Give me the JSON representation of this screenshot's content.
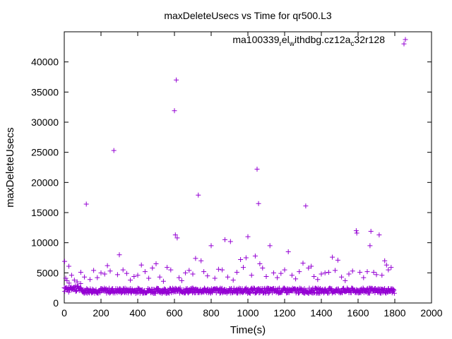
{
  "chart_data": {
    "type": "scatter",
    "title": "maxDeleteUsecs vs Time for qr500.L3",
    "xlabel": "Time(s)",
    "ylabel": "maxDeleteUsecs",
    "xlim": [
      0,
      2000
    ],
    "ylim": [
      0,
      45000
    ],
    "x_ticks": [
      0,
      200,
      400,
      600,
      800,
      1000,
      1200,
      1400,
      1600,
      1800,
      2000
    ],
    "y_ticks": [
      0,
      5000,
      10000,
      15000,
      20000,
      25000,
      30000,
      35000,
      40000
    ],
    "x_tick_labels": [
      "0",
      "200",
      "400",
      "600",
      "800",
      "1000",
      "1200",
      "1400",
      "1600",
      "1800",
      "2000"
    ],
    "y_tick_labels": [
      "0",
      "5000",
      "10000",
      "15000",
      "20000",
      "25000",
      "30000",
      "35000",
      "40000"
    ],
    "grid": false,
    "legend_position": "top-right",
    "marker": "+",
    "color": "#9400d3",
    "series": [
      {
        "legend_parts": [
          "ma100339",
          "r",
          "el",
          "w",
          "ithdbg.cz12a",
          "c",
          "32r128"
        ],
        "points": [
          [
            2,
            6900
          ],
          [
            8,
            4100
          ],
          [
            15,
            3700
          ],
          [
            25,
            6100
          ],
          [
            40,
            4600
          ],
          [
            55,
            3800
          ],
          [
            70,
            3500
          ],
          [
            90,
            5100
          ],
          [
            110,
            4300
          ],
          [
            120,
            16400
          ],
          [
            140,
            3900
          ],
          [
            160,
            5400
          ],
          [
            180,
            4200
          ],
          [
            200,
            5000
          ],
          [
            220,
            4800
          ],
          [
            235,
            6200
          ],
          [
            250,
            5300
          ],
          [
            270,
            25300
          ],
          [
            290,
            4700
          ],
          [
            300,
            8000
          ],
          [
            320,
            5500
          ],
          [
            340,
            4900
          ],
          [
            360,
            3800
          ],
          [
            380,
            4400
          ],
          [
            400,
            4600
          ],
          [
            420,
            6300
          ],
          [
            440,
            5200
          ],
          [
            460,
            4100
          ],
          [
            480,
            5800
          ],
          [
            500,
            6500
          ],
          [
            520,
            4300
          ],
          [
            540,
            3600
          ],
          [
            560,
            5900
          ],
          [
            580,
            5500
          ],
          [
            600,
            31900
          ],
          [
            605,
            11300
          ],
          [
            610,
            37000
          ],
          [
            615,
            10800
          ],
          [
            625,
            4200
          ],
          [
            640,
            3700
          ],
          [
            660,
            5000
          ],
          [
            680,
            5400
          ],
          [
            700,
            4800
          ],
          [
            715,
            7400
          ],
          [
            730,
            17900
          ],
          [
            745,
            7000
          ],
          [
            760,
            5200
          ],
          [
            780,
            4500
          ],
          [
            800,
            9500
          ],
          [
            820,
            4100
          ],
          [
            840,
            5600
          ],
          [
            860,
            5500
          ],
          [
            875,
            10500
          ],
          [
            890,
            4300
          ],
          [
            905,
            10200
          ],
          [
            920,
            3800
          ],
          [
            940,
            5100
          ],
          [
            960,
            7200
          ],
          [
            975,
            5900
          ],
          [
            990,
            7500
          ],
          [
            1000,
            11000
          ],
          [
            1020,
            4600
          ],
          [
            1040,
            7800
          ],
          [
            1050,
            22200
          ],
          [
            1058,
            16500
          ],
          [
            1065,
            6500
          ],
          [
            1080,
            5800
          ],
          [
            1100,
            4400
          ],
          [
            1120,
            9500
          ],
          [
            1140,
            5000
          ],
          [
            1160,
            4200
          ],
          [
            1180,
            4900
          ],
          [
            1200,
            5500
          ],
          [
            1220,
            8500
          ],
          [
            1240,
            4600
          ],
          [
            1260,
            4000
          ],
          [
            1280,
            5200
          ],
          [
            1300,
            6600
          ],
          [
            1315,
            16100
          ],
          [
            1330,
            5800
          ],
          [
            1345,
            6100
          ],
          [
            1360,
            4400
          ],
          [
            1380,
            3900
          ],
          [
            1400,
            4800
          ],
          [
            1420,
            5000
          ],
          [
            1440,
            5100
          ],
          [
            1460,
            7600
          ],
          [
            1475,
            5400
          ],
          [
            1490,
            7100
          ],
          [
            1510,
            4300
          ],
          [
            1530,
            3700
          ],
          [
            1550,
            4800
          ],
          [
            1570,
            5300
          ],
          [
            1590,
            12000
          ],
          [
            1593,
            11600
          ],
          [
            1610,
            5100
          ],
          [
            1630,
            4200
          ],
          [
            1650,
            5200
          ],
          [
            1665,
            9500
          ],
          [
            1670,
            11900
          ],
          [
            1685,
            5100
          ],
          [
            1700,
            4700
          ],
          [
            1715,
            11300
          ],
          [
            1730,
            4600
          ],
          [
            1745,
            7000
          ],
          [
            1755,
            6300
          ],
          [
            1765,
            5500
          ],
          [
            1780,
            5900
          ],
          [
            1850,
            43000
          ]
        ]
      }
    ],
    "baseline_band": {
      "x_range": [
        0,
        1800
      ],
      "y_range": [
        1600,
        3200
      ]
    }
  }
}
